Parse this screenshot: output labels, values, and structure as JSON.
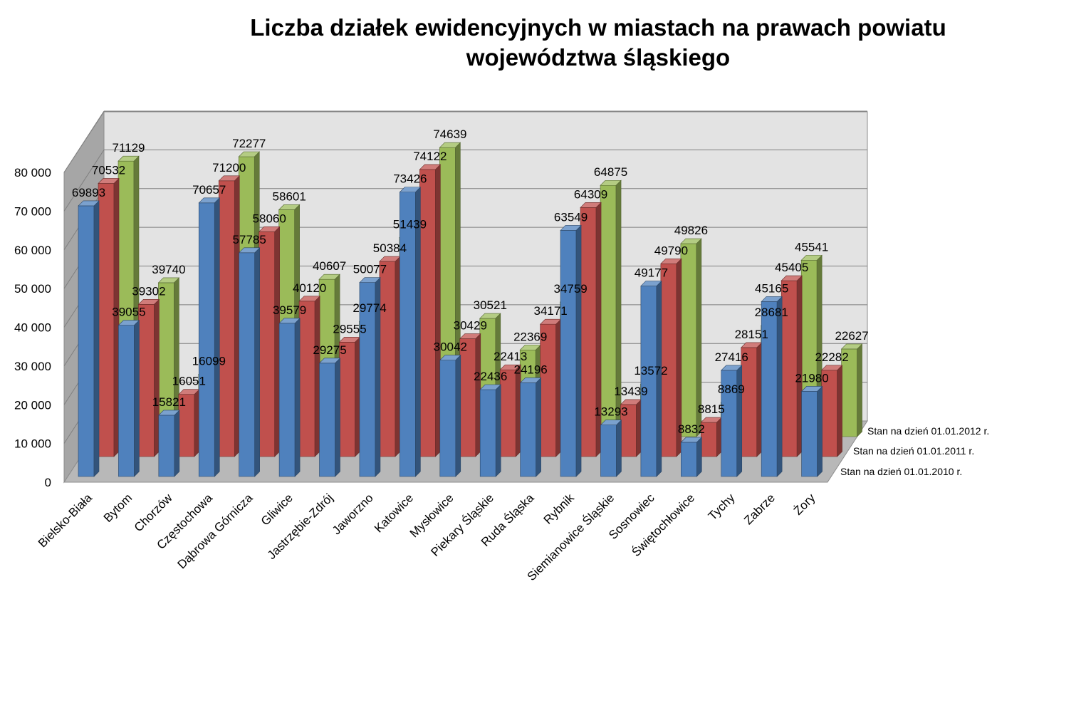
{
  "title_line1": "Liczba działek ewidencyjnych w miastach na prawach powiatu",
  "title_line2": "województwa śląskiego",
  "chart_data": {
    "type": "bar",
    "subtype": "3d-clustered-depth",
    "title": "Liczba działek ewidencyjnych w miastach na prawach powiatu województwa śląskiego",
    "ylim": [
      0,
      80000
    ],
    "yticks": [
      "0",
      "10 000",
      "20 000",
      "30 000",
      "40 000",
      "50 000",
      "60 000",
      "70 000",
      "80 000"
    ],
    "grid": true,
    "legend": "depth-axis-right",
    "categories": [
      "Bielsko-Biała",
      "Bytom",
      "Chorzów",
      "Częstochowa",
      "Dąbrowa Górnicza",
      "Gliwice",
      "Jastrzębie-Zdrój",
      "Jaworzno",
      "Katowice",
      "Mysłowice",
      "Piekary Śląskie",
      "Ruda Śląska",
      "Rybnik",
      "Siemianowice Śląskie",
      "Sosnowiec",
      "Świętochłowice",
      "Tychy",
      "Zabrze",
      "Żory"
    ],
    "series": [
      {
        "name": "Stan na dzień 01.01.2010 r.",
        "color": "#4f81bd",
        "values": [
          69893,
          39055,
          15821,
          70657,
          57785,
          39579,
          29275,
          50077,
          73426,
          30042,
          22436,
          24196,
          63549,
          13293,
          49177,
          8832,
          27416,
          45165,
          21980
        ]
      },
      {
        "name": "Stan na dzień 01.01.2011 r.",
        "color": "#c0504d",
        "values": [
          70532,
          39302,
          16051,
          71200,
          58060,
          40120,
          29555,
          50384,
          74122,
          30429,
          22413,
          34171,
          64309,
          13439,
          49790,
          8815,
          28151,
          45405,
          22282
        ]
      },
      {
        "name": "Stan na dzień 01.01.2012 r.",
        "color": "#9bbb59",
        "values": [
          71129,
          39740,
          16099,
          72277,
          58601,
          40607,
          29774,
          51439,
          74639,
          30521,
          22369,
          34759,
          64875,
          13572,
          49826,
          8869,
          28681,
          45541,
          22627
        ]
      }
    ]
  }
}
